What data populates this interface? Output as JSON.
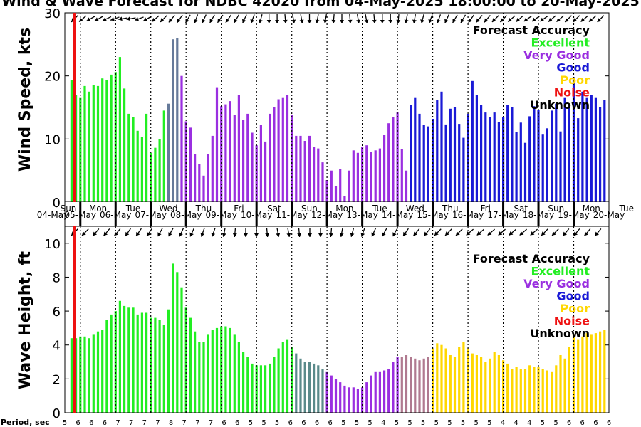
{
  "title": "Wind & Wave Forecast for NDBC 42020 from 04-May-2025 18:00:00 to 20-May-2025",
  "legend_title": "Forecast Accuracy",
  "legend": [
    {
      "label": "Excellent",
      "color": "#22ee22"
    },
    {
      "label": "Very Good",
      "color": "#9a2fe0"
    },
    {
      "label": "Good",
      "color": "#1a1ad6"
    },
    {
      "label": "Poor",
      "color": "#ffd700"
    },
    {
      "label": "Noise",
      "color": "#ee1111"
    },
    {
      "label": "Unknown",
      "color": "#000000"
    }
  ],
  "days": [
    {
      "name": "Sun",
      "date": "04-May"
    },
    {
      "name": "Mon",
      "date": "05-May"
    },
    {
      "name": "Tue",
      "date": "06-May"
    },
    {
      "name": "Wed",
      "date": "07-May"
    },
    {
      "name": "Thu",
      "date": "08-May"
    },
    {
      "name": "Fri",
      "date": "09-May"
    },
    {
      "name": "Sat",
      "date": "10-May"
    },
    {
      "name": "Sun",
      "date": "11-May"
    },
    {
      "name": "Mon",
      "date": "12-May"
    },
    {
      "name": "Tue",
      "date": "13-May"
    },
    {
      "name": "Wed",
      "date": "14-May"
    },
    {
      "name": "Thu",
      "date": "15-May"
    },
    {
      "name": "Fri",
      "date": "16-May"
    },
    {
      "name": "Sat",
      "date": "17-May"
    },
    {
      "name": "Sun",
      "date": "18-May"
    },
    {
      "name": "Mon",
      "date": "19-May"
    },
    {
      "name": "Tue",
      "date": "20-May"
    }
  ],
  "period_label": "Period, sec",
  "chart_data": [
    {
      "type": "bar",
      "ylabel": "Wind Speed, kts",
      "ylim": [
        0,
        30
      ],
      "yticks": [
        0,
        10,
        20,
        30
      ],
      "x_unit": "days since 04-May-2025 00:00",
      "bar_step_hours": 3,
      "series": [
        {
          "name": "Excellent",
          "color": "#22ee22",
          "x": [
            0.75,
            0.875,
            1.0,
            1.125,
            1.25,
            1.375,
            1.5,
            1.625,
            1.75,
            1.875,
            2.0,
            2.125,
            2.25,
            2.375,
            2.5,
            2.625,
            2.75,
            2.875,
            3.0,
            3.125,
            3.25,
            3.375
          ],
          "values": [
            19.4,
            17.0,
            16.5,
            18.4,
            17.5,
            18.5,
            18.4,
            19.6,
            19.4,
            20.2,
            20.6,
            23.0,
            18.0,
            14.0,
            13.5,
            11.3,
            10.3,
            14.0,
            7.8,
            8.6,
            10.0,
            14.5
          ]
        },
        {
          "name": "Transition",
          "color": "#667a9a",
          "x": [
            3.5,
            3.625,
            3.75
          ],
          "values": [
            15.6,
            25.8,
            26.0
          ]
        },
        {
          "name": "Very Good",
          "color": "#9a2fe0",
          "x": [
            3.875,
            4.0,
            4.125,
            4.25,
            4.375,
            4.5,
            4.625,
            4.75,
            4.875,
            5.0,
            5.125,
            5.25,
            5.375,
            5.5,
            5.625,
            5.75,
            5.875,
            6.0,
            6.125,
            6.25,
            6.375,
            6.5,
            6.625,
            6.75,
            6.875,
            7.0,
            7.125,
            7.25,
            7.375,
            7.5,
            7.625,
            7.75,
            7.875,
            8.0,
            8.125,
            8.25,
            8.375,
            8.5,
            8.625,
            8.75,
            8.875,
            9.0,
            9.125,
            9.25,
            9.375,
            9.5,
            9.625,
            9.75,
            9.875,
            10.0,
            10.125,
            10.25
          ],
          "values": [
            20.0,
            12.8,
            11.8,
            7.6,
            6.0,
            4.2,
            7.6,
            10.5,
            18.2,
            15.2,
            15.5,
            16.0,
            13.8,
            17.0,
            13.0,
            14.0,
            11.0,
            9.0,
            12.2,
            9.6,
            14.0,
            15.0,
            16.3,
            16.5,
            17.0,
            13.8,
            10.5,
            10.5,
            9.7,
            10.5,
            8.8,
            8.5,
            6.3,
            3.5,
            5.0,
            2.5,
            5.2,
            1.0,
            5.0,
            8.2,
            7.8,
            8.7,
            9.0,
            8.0,
            8.2,
            8.5,
            10.6,
            12.5,
            13.5,
            14.2,
            8.4,
            5.0
          ]
        },
        {
          "name": "Good",
          "color": "#1a1ad6",
          "x": [
            10.375,
            10.5,
            10.625,
            10.75,
            10.875,
            11.0,
            11.125,
            11.25,
            11.375,
            11.5,
            11.625,
            11.75,
            11.875,
            12.0,
            12.125,
            12.25,
            12.375,
            12.5,
            12.625,
            12.75,
            12.875,
            13.0,
            13.125,
            13.25,
            13.375,
            13.5,
            13.625,
            13.75,
            13.875,
            14.0,
            14.125,
            14.25,
            14.375,
            14.5,
            14.625,
            14.75,
            14.875,
            15.0,
            15.125,
            15.25,
            15.375,
            15.5,
            15.625,
            15.75,
            15.875
          ],
          "values": [
            15.4,
            16.5,
            14.0,
            12.2,
            12.0,
            13.2,
            16.2,
            17.5,
            12.3,
            14.8,
            15.0,
            12.4,
            10.2,
            14.0,
            19.2,
            17.0,
            15.4,
            14.2,
            13.5,
            14.2,
            12.7,
            13.5,
            15.4,
            15.0,
            11.1,
            12.6,
            9.4,
            13.6,
            15.2,
            14.6,
            10.8,
            11.7,
            14.5,
            15.6,
            11.2,
            16.5,
            15.4,
            19.8,
            13.3,
            17.5,
            16.5,
            17.0,
            16.5,
            15.0,
            16.2
          ]
        }
      ]
    },
    {
      "type": "bar",
      "ylabel": "Wave Height, ft",
      "ylim": [
        0,
        11
      ],
      "yticks": [
        0,
        2,
        4,
        6,
        8,
        10
      ],
      "x_unit": "days since 04-May-2025 00:00",
      "bar_step_hours": 3,
      "series": [
        {
          "name": "Excellent",
          "color": "#22ee22",
          "x": [
            0.75,
            0.875,
            1.0,
            1.125,
            1.25,
            1.375,
            1.5,
            1.625,
            1.75,
            1.875,
            2.0,
            2.125,
            2.25,
            2.375,
            2.5,
            2.625,
            2.75,
            2.875,
            3.0,
            3.125,
            3.25,
            3.375,
            3.5,
            3.625,
            3.75,
            3.875,
            4.0,
            4.125,
            4.25,
            4.375,
            4.5,
            4.625,
            4.75,
            4.875,
            5.0,
            5.125,
            5.25,
            5.375,
            5.5,
            5.625,
            5.75,
            5.875,
            6.0,
            6.125,
            6.25,
            6.375,
            6.5,
            6.625,
            6.75,
            6.875,
            7.0
          ],
          "values": [
            4.4,
            4.4,
            4.5,
            4.5,
            4.4,
            4.6,
            4.8,
            4.9,
            5.5,
            5.8,
            6.0,
            6.6,
            6.3,
            6.2,
            6.2,
            5.8,
            5.9,
            5.9,
            5.6,
            5.6,
            5.5,
            5.2,
            6.1,
            8.8,
            8.3,
            7.4,
            6.2,
            5.6,
            4.8,
            4.2,
            4.2,
            4.6,
            4.9,
            5.0,
            5.1,
            5.1,
            5.0,
            4.6,
            4.2,
            3.6,
            3.3,
            2.9,
            2.8,
            2.8,
            2.8,
            2.9,
            3.3,
            3.8,
            4.2,
            4.3,
            3.9
          ]
        },
        {
          "name": "Transition",
          "color": "#5a8a8a",
          "x": [
            7.125,
            7.25,
            7.375,
            7.5,
            7.625,
            7.75,
            7.875
          ],
          "values": [
            3.5,
            3.2,
            3.0,
            3.0,
            2.9,
            2.8,
            2.6
          ]
        },
        {
          "name": "Very Good",
          "color": "#9a2fe0",
          "x": [
            8.0,
            8.125,
            8.25,
            8.375,
            8.5,
            8.625,
            8.75,
            8.875,
            9.0,
            9.125,
            9.25,
            9.375,
            9.5,
            9.625,
            9.75,
            9.875,
            10.0
          ],
          "values": [
            2.4,
            2.2,
            2.0,
            1.8,
            1.6,
            1.5,
            1.5,
            1.4,
            1.5,
            1.8,
            2.2,
            2.4,
            2.4,
            2.5,
            2.6,
            3.0,
            3.3
          ]
        },
        {
          "name": "Transition2",
          "color": "#b07a90",
          "x": [
            10.125,
            10.25,
            10.375,
            10.5,
            10.625,
            10.75,
            10.875
          ],
          "values": [
            3.3,
            3.4,
            3.3,
            3.2,
            3.1,
            3.2,
            3.3
          ]
        },
        {
          "name": "Poor",
          "color": "#ffd700",
          "x": [
            11.0,
            11.125,
            11.25,
            11.375,
            11.5,
            11.625,
            11.75,
            11.875,
            12.0,
            12.125,
            12.25,
            12.375,
            12.5,
            12.625,
            12.75,
            12.875,
            13.0,
            13.125,
            13.25,
            13.375,
            13.5,
            13.625,
            13.75,
            13.875,
            14.0,
            14.125,
            14.25,
            14.375,
            14.5,
            14.625,
            14.75,
            14.875,
            15.0,
            15.125,
            15.25,
            15.375,
            15.5,
            15.625,
            15.75,
            15.875
          ],
          "values": [
            3.8,
            4.1,
            4.0,
            3.8,
            3.4,
            3.3,
            3.9,
            4.2,
            3.8,
            3.5,
            3.4,
            3.3,
            3.0,
            3.2,
            3.6,
            3.4,
            3.1,
            2.9,
            2.6,
            2.7,
            2.6,
            2.6,
            2.8,
            2.7,
            2.7,
            2.6,
            2.5,
            2.4,
            2.8,
            3.4,
            3.2,
            3.9,
            4.6,
            4.3,
            4.5,
            4.7,
            4.6,
            4.7,
            4.8,
            4.9
          ]
        }
      ]
    }
  ],
  "wind_arrow_angles": [
    -45,
    -40,
    -30,
    -30,
    -25,
    -20,
    -10,
    -10,
    -20,
    -30,
    -40,
    -45,
    -50,
    -55,
    -60,
    -70,
    -65,
    -60,
    -55,
    -55,
    -60,
    -65,
    -70,
    -75,
    -90,
    -90,
    -95,
    -100,
    -100,
    -90,
    -80,
    -80,
    -85,
    -90,
    -95,
    -100,
    -100,
    -95,
    -90,
    -90,
    -85,
    -80,
    -80,
    -75,
    -70,
    -70,
    -65,
    -60,
    -60,
    -55,
    -50,
    -50,
    -45,
    -45,
    -40,
    -40,
    -35,
    -35,
    -35,
    -40,
    -40,
    -45,
    -45,
    -40,
    -40,
    -45
  ],
  "wave_arrow_angles": [
    -45,
    -45,
    -50,
    -50,
    -50,
    -55,
    -55,
    -55,
    -60,
    -60,
    -65,
    -65,
    -70,
    -70,
    -80,
    -85,
    -90,
    -90,
    -95,
    -100,
    -100,
    -95,
    -90,
    -90,
    -85,
    -80,
    -75,
    -70,
    -65,
    -60,
    -60,
    -55,
    -50,
    -50,
    -45,
    -45,
    -45,
    -40,
    -40,
    -40,
    -40,
    -40,
    -40,
    -40,
    -45,
    -45,
    -50,
    -50,
    -50,
    -50
  ],
  "periods": [
    5,
    6,
    6,
    6,
    7,
    7,
    7,
    7,
    8,
    7,
    7,
    7,
    6,
    6,
    5,
    5,
    5,
    6,
    6,
    6,
    6,
    5,
    5,
    5,
    4,
    5,
    5,
    5,
    5,
    5,
    5,
    5,
    5,
    4,
    4,
    4,
    5,
    5,
    6,
    6,
    6,
    6
  ]
}
